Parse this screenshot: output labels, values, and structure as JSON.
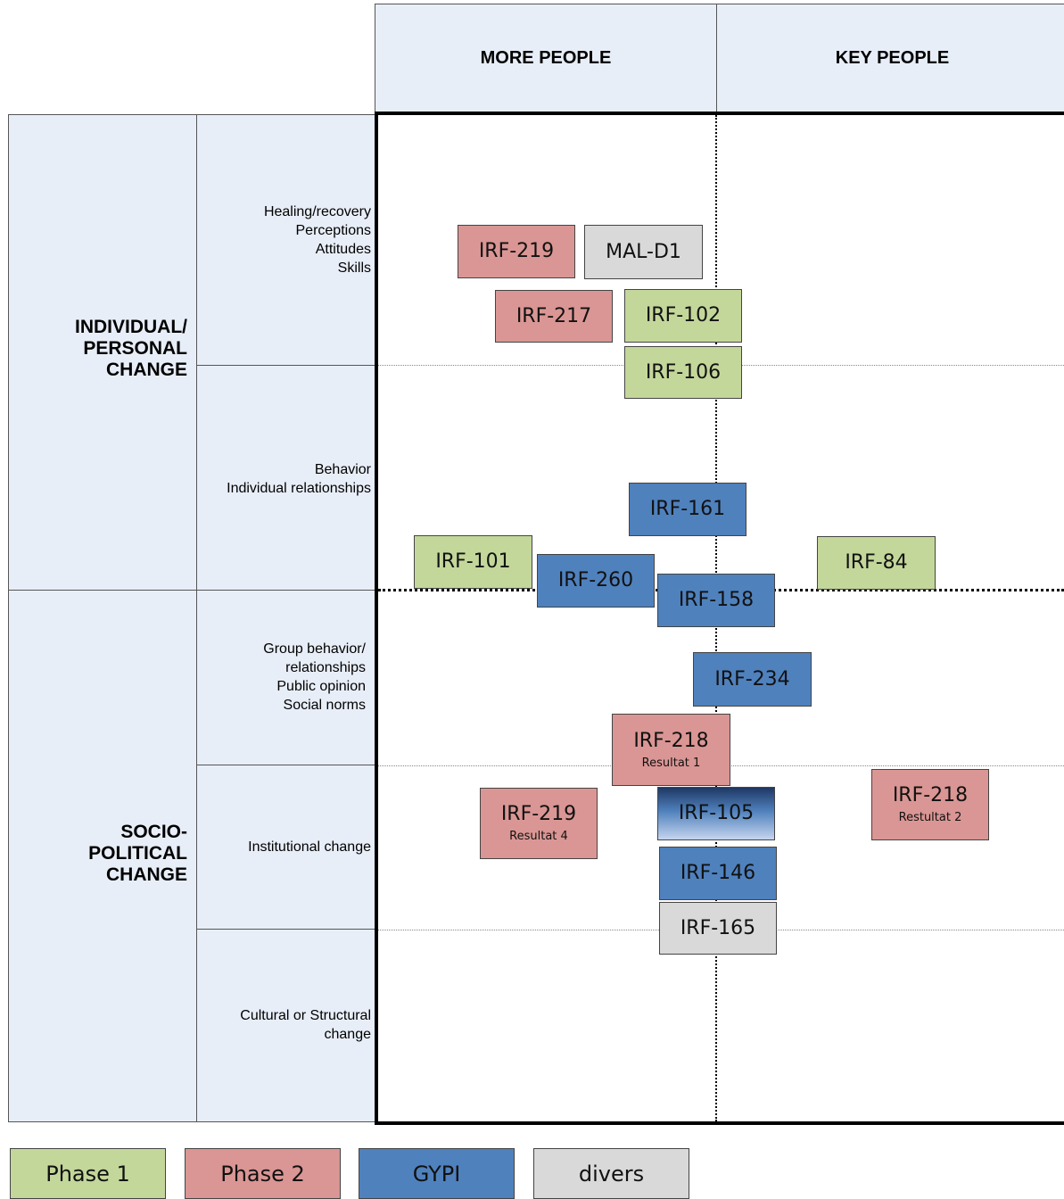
{
  "columns": {
    "more_people": "MORE PEOPLE",
    "key_people": "KEY PEOPLE"
  },
  "categories": {
    "individual": [
      "INDIVIDUAL/",
      "PERSONAL",
      "CHANGE"
    ],
    "socio": [
      "SOCIO-",
      "POLITICAL",
      "CHANGE"
    ]
  },
  "sublevels": {
    "s1": [
      "Healing/recovery",
      "Perceptions",
      "Attitudes",
      "Skills"
    ],
    "s2": [
      "Behavior",
      "Individual relationships"
    ],
    "s3": [
      "Group behavior/",
      "relationships",
      "Public opinion",
      "Social norms"
    ],
    "s4": [
      "Institutional change"
    ],
    "s5": [
      "Cultural or Structural",
      "change"
    ]
  },
  "projects": {
    "irf219": {
      "code": "IRF-219",
      "group": "Phase 2"
    },
    "mald1": {
      "code": "MAL-D1",
      "group": "divers"
    },
    "irf217": {
      "code": "IRF-217",
      "group": "Phase 2"
    },
    "irf102": {
      "code": "IRF-102",
      "group": "Phase 1"
    },
    "irf106": {
      "code": "IRF-106",
      "group": "Phase 1"
    },
    "irf161": {
      "code": "IRF-161",
      "group": "GYPI"
    },
    "irf101": {
      "code": "IRF-101",
      "group": "Phase 1"
    },
    "irf260": {
      "code": "IRF-260",
      "group": "GYPI"
    },
    "irf84": {
      "code": "IRF-84",
      "group": "Phase 1"
    },
    "irf158": {
      "code": "IRF-158",
      "group": "GYPI"
    },
    "irf234": {
      "code": "IRF-234",
      "group": "GYPI"
    },
    "irf218r1": {
      "code": "IRF-218",
      "sub": "Resultat 1",
      "group": "Phase 2"
    },
    "irf219r4": {
      "code": "IRF-219",
      "sub": "Resultat 4",
      "group": "Phase 2"
    },
    "irf105": {
      "code": "IRF-105",
      "group": "GYPI"
    },
    "irf218r2": {
      "code": "IRF-218",
      "sub": "Restultat 2",
      "group": "Phase 2"
    },
    "irf146": {
      "code": "IRF-146",
      "group": "GYPI"
    },
    "irf165": {
      "code": "IRF-165",
      "group": "divers"
    }
  },
  "legend": {
    "phase1": "Phase 1",
    "phase2": "Phase 2",
    "gypi": "GYPI",
    "divers": "divers"
  },
  "colors": {
    "phase1": "#c4d79b",
    "phase2": "#da9694",
    "gypi": "#4f81bd",
    "divers": "#d9d9d9",
    "header_bg": "#e8eef8"
  }
}
